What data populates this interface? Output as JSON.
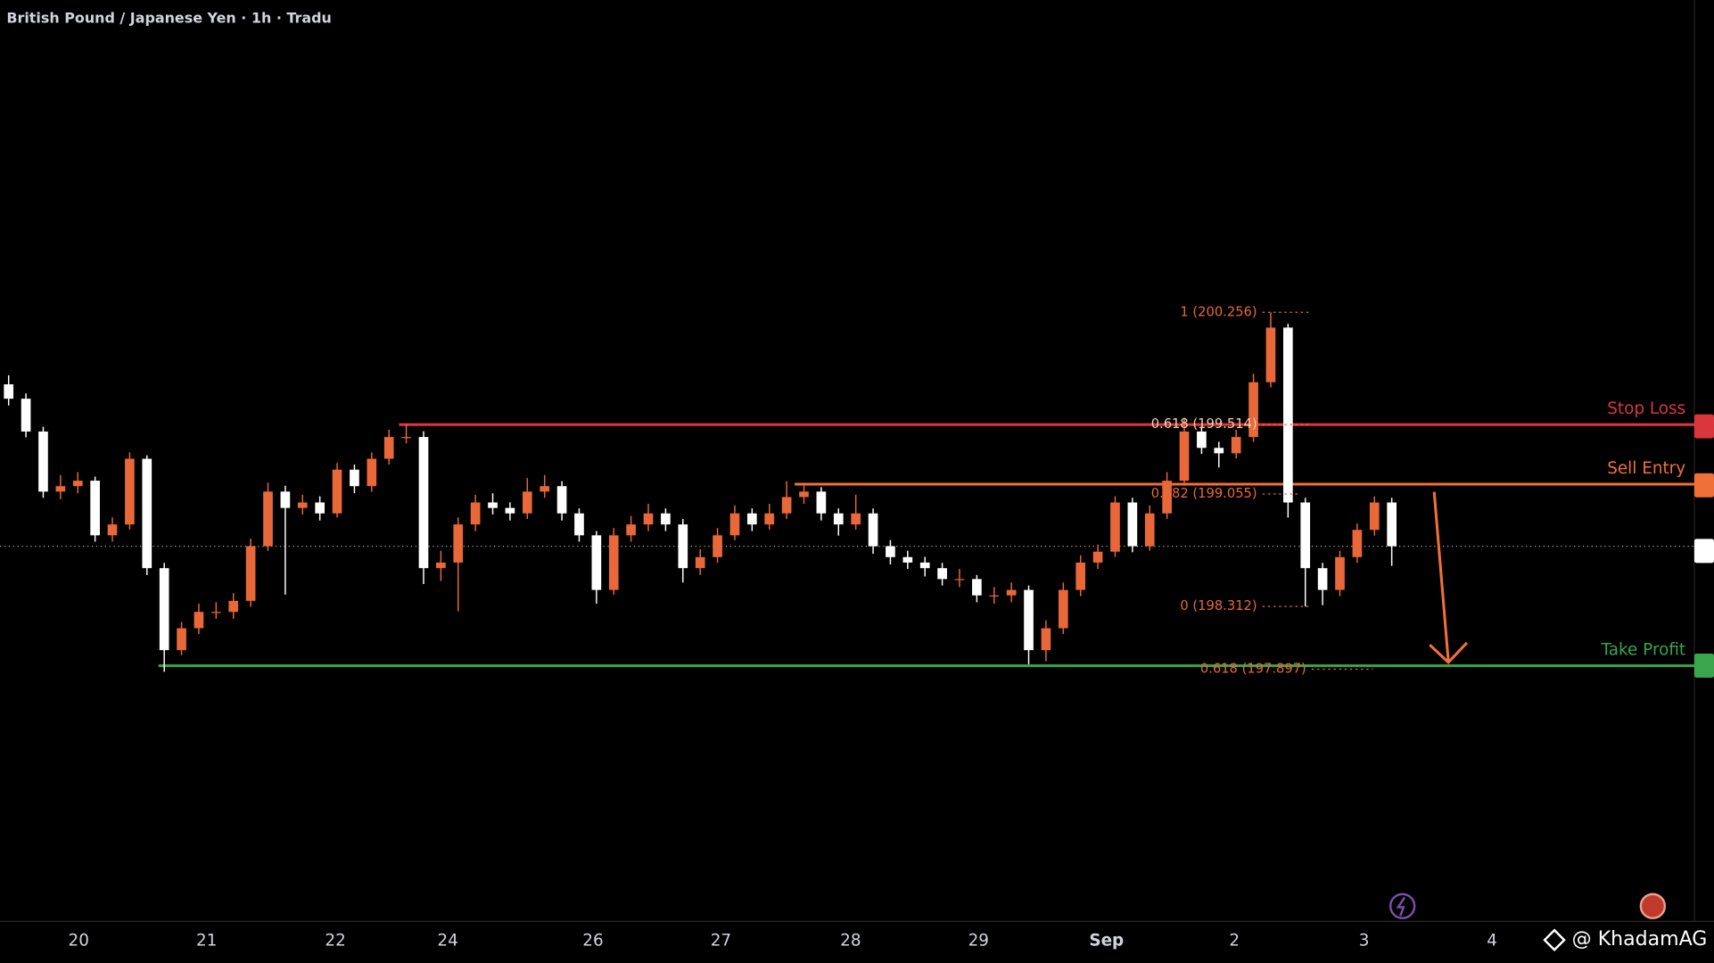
{
  "chart_data": {
    "type": "candlestick",
    "title": "British Pound / Japanese Yen · 1h · Tradu",
    "up_color": "#e8683a",
    "down_color": "#ffffff",
    "xlim": [
      -0.5,
      97.5
    ],
    "ylim": [
      196.23,
      202.32
    ],
    "xticks": [
      {
        "value": 4.05,
        "label": "20"
      },
      {
        "value": 11.45,
        "label": "21"
      },
      {
        "value": 18.9,
        "label": "22"
      },
      {
        "value": 25.4,
        "label": "24"
      },
      {
        "value": 33.8,
        "label": "26"
      },
      {
        "value": 41.2,
        "label": "27"
      },
      {
        "value": 48.7,
        "label": "28"
      },
      {
        "value": 56.1,
        "label": "29"
      },
      {
        "value": 63.5,
        "label": "Sep"
      },
      {
        "value": 70.9,
        "label": "2"
      },
      {
        "value": 78.4,
        "label": "3"
      },
      {
        "value": 85.8,
        "label": "4"
      }
    ],
    "open": [
      199.78,
      199.685,
      199.468,
      199.071,
      199.107,
      199.143,
      198.782,
      198.854,
      199.288,
      198.565,
      198.023,
      198.168,
      198.276,
      198.276,
      198.349,
      198.71,
      199.071,
      198.963,
      198.999,
      198.927,
      199.216,
      199.107,
      199.288,
      199.432,
      199.432,
      198.565,
      198.602,
      198.854,
      198.999,
      198.963,
      198.927,
      199.071,
      199.107,
      198.927,
      198.782,
      198.421,
      198.782,
      198.854,
      198.927,
      198.854,
      198.565,
      198.638,
      198.782,
      198.927,
      198.854,
      198.927,
      199.035,
      199.071,
      198.927,
      198.854,
      198.927,
      198.71,
      198.638,
      198.602,
      198.565,
      198.493,
      198.493,
      198.385,
      198.385,
      198.421,
      198.023,
      198.168,
      198.421,
      198.602,
      198.674,
      198.999,
      198.71,
      198.927,
      199.143,
      199.468,
      199.36,
      199.324,
      199.432,
      199.794,
      200.155,
      198.999,
      198.565,
      198.421,
      198.638,
      198.818,
      198.999
    ],
    "high": [
      199.84,
      199.72,
      199.5,
      199.18,
      199.2,
      199.17,
      198.9,
      199.33,
      199.31,
      198.6,
      198.21,
      198.33,
      198.34,
      198.4,
      198.76,
      199.13,
      199.11,
      199.05,
      199.04,
      199.26,
      199.25,
      199.33,
      199.48,
      199.52,
      199.47,
      198.68,
      198.9,
      199.05,
      199.06,
      199.0,
      199.16,
      199.18,
      199.14,
      198.96,
      198.81,
      198.83,
      198.91,
      198.99,
      198.96,
      198.89,
      198.69,
      198.83,
      198.98,
      198.96,
      198.99,
      199.14,
      199.12,
      199.1,
      198.96,
      199.05,
      198.96,
      198.75,
      198.68,
      198.64,
      198.6,
      198.56,
      198.52,
      198.44,
      198.47,
      198.45,
      198.22,
      198.47,
      198.65,
      198.72,
      199.04,
      199.03,
      198.98,
      199.2,
      199.56,
      199.5,
      199.4,
      199.48,
      199.85,
      200.256,
      200.18,
      199.03,
      198.6,
      198.68,
      198.86,
      199.04,
      199.03
    ],
    "low": [
      199.64,
      199.43,
      199.03,
      199.02,
      199.06,
      198.74,
      198.74,
      198.82,
      198.52,
      197.88,
      197.99,
      198.13,
      198.23,
      198.23,
      198.31,
      198.68,
      198.39,
      198.92,
      198.88,
      198.9,
      199.06,
      199.07,
      199.25,
      199.39,
      198.46,
      198.48,
      198.28,
      198.81,
      198.92,
      198.88,
      198.89,
      199.03,
      198.88,
      198.74,
      198.33,
      198.39,
      198.74,
      198.81,
      198.81,
      198.47,
      198.52,
      198.6,
      198.75,
      198.81,
      198.82,
      198.89,
      198.99,
      198.88,
      198.78,
      198.82,
      198.66,
      198.59,
      198.56,
      198.51,
      198.45,
      198.44,
      198.34,
      198.33,
      198.34,
      197.93,
      197.95,
      198.13,
      198.38,
      198.56,
      198.64,
      198.67,
      198.68,
      198.89,
      199.11,
      199.32,
      199.23,
      199.29,
      199.4,
      199.76,
      198.9,
      198.312,
      198.32,
      198.38,
      198.6,
      198.78,
      198.58
    ],
    "close": [
      199.685,
      199.468,
      199.071,
      199.107,
      199.143,
      198.782,
      198.854,
      199.288,
      198.565,
      198.023,
      198.168,
      198.276,
      198.276,
      198.349,
      198.71,
      199.071,
      198.963,
      198.999,
      198.927,
      199.216,
      199.107,
      199.288,
      199.432,
      199.432,
      198.565,
      198.602,
      198.854,
      198.999,
      198.963,
      198.927,
      199.071,
      199.107,
      198.927,
      198.782,
      198.421,
      198.782,
      198.854,
      198.927,
      198.854,
      198.565,
      198.638,
      198.782,
      198.927,
      198.854,
      198.927,
      199.035,
      199.071,
      198.927,
      198.854,
      198.927,
      198.71,
      198.638,
      198.602,
      198.565,
      198.493,
      198.493,
      198.385,
      198.385,
      198.421,
      198.023,
      198.168,
      198.421,
      198.602,
      198.674,
      198.999,
      198.71,
      198.927,
      199.143,
      199.468,
      199.36,
      199.324,
      199.432,
      199.794,
      200.155,
      198.999,
      198.565,
      198.421,
      198.638,
      198.818,
      198.999,
      198.71
    ],
    "levels": [
      {
        "label": "Stop Loss",
        "value": 199.514,
        "color": "#d9363e"
      },
      {
        "label": "Sell Entry",
        "value": 199.12,
        "color": "#f0703a"
      },
      {
        "label": "Take Profit",
        "value": 197.92,
        "color": "#3aa64c"
      }
    ],
    "fib_labels": [
      {
        "label": "1 (200.256)",
        "value": 200.256
      },
      {
        "label": "0.618 (199.514)",
        "value": 199.514
      },
      {
        "label": "0.382 (199.055)",
        "value": 199.055
      },
      {
        "label": "0 (198.312)",
        "value": 198.312
      },
      {
        "label": "0.618 (197.897)",
        "value": 197.897
      }
    ],
    "watermark": "@ KhadamAG"
  }
}
